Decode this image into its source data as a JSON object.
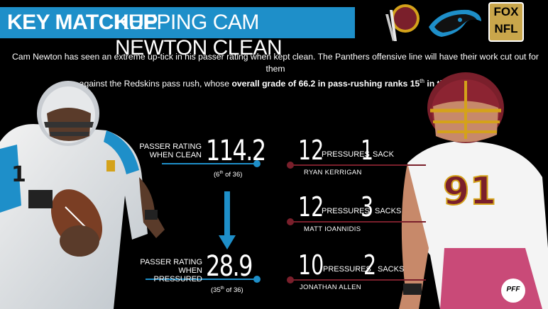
{
  "header": {
    "title_bold": "KEY MATCHUP",
    "title_rest": "KEEPING CAM NEWTON CLEAN",
    "fox_text": "FOX",
    "nfl_text": "NFL"
  },
  "intro": {
    "line1": "Cam Newton has seen an extreme up-tick in his passer rating when kept clean. The Panthers offensive line will have their work cut out for them",
    "line2_plain": "against the Redskins pass rush, whose ",
    "line2_bold_a": "overall grade of 66.2 in pass-rushing ranks 15",
    "line2_bold_sup": "th",
    "line2_bold_b": " in the NFL."
  },
  "newton": {
    "clean_label_1": "PASSER RATING",
    "clean_label_2": "WHEN CLEAN",
    "clean_value": "114.2",
    "clean_rank_pre": "(6",
    "clean_rank_sup": "th",
    "clean_rank_post": " of 36)",
    "pressured_label_1": "PASSER RATING",
    "pressured_label_2": "WHEN PRESSURED",
    "pressured_value": "28.9",
    "pressured_rank_pre": "(35",
    "pressured_rank_sup": "th",
    "pressured_rank_post": " of 36)"
  },
  "rushers": [
    {
      "pressures": "12",
      "pressures_word": "PRESSURES",
      "sacks": "1",
      "sacks_word": "SACK",
      "name": "RYAN KERRIGAN"
    },
    {
      "pressures": "12",
      "pressures_word": "PRESSURES",
      "sacks": "3",
      "sacks_word": "SACKS",
      "name": "MATT IOANNIDIS"
    },
    {
      "pressures": "10",
      "pressures_word": "PRESSURES",
      "sacks": "2",
      "sacks_word": "SACKS",
      "name": "JONATHAN ALLEN"
    }
  ],
  "pff_logo": "PFF",
  "colors": {
    "panthers_blue": "#1e8fc9",
    "redskins_burgundy": "#7a1f2b"
  }
}
